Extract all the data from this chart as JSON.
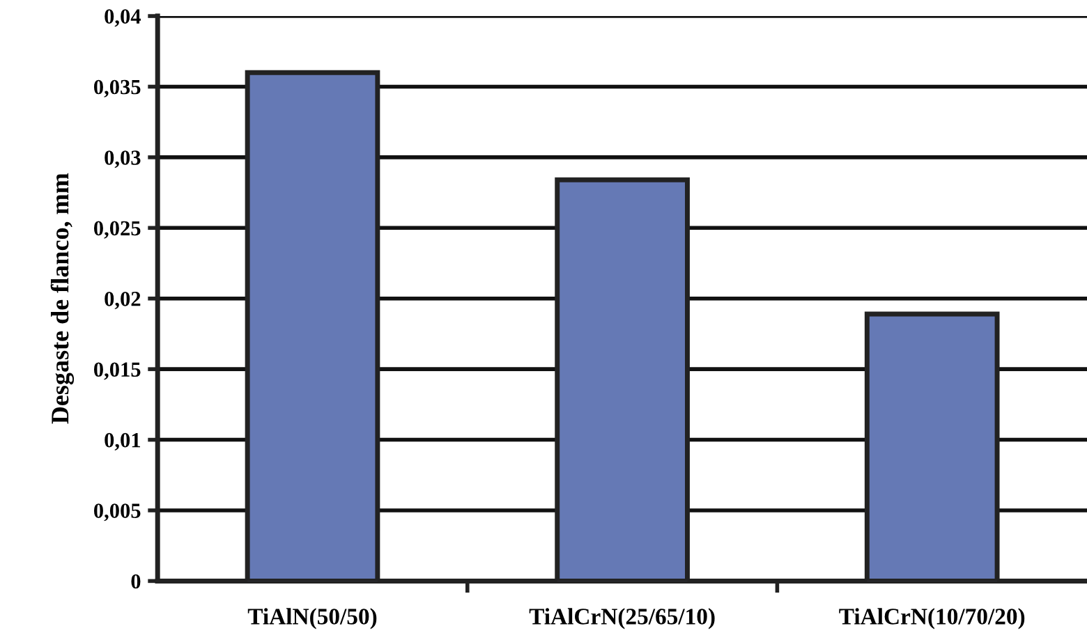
{
  "chart_data": {
    "type": "bar",
    "ylabel": "Desgaste de flanco, mm",
    "categories": [
      "TiAlN(50/50)",
      "TiAlCrN(25/65/10)",
      "TiAlCrN(10/70/20)"
    ],
    "values": [
      0.036,
      0.0284,
      0.0189
    ],
    "color": "#6579b5",
    "ylim": [
      0,
      0.04
    ],
    "yticks": [
      {
        "value": 0,
        "label": "0"
      },
      {
        "value": 0.005,
        "label": "0,005"
      },
      {
        "value": 0.01,
        "label": "0,01"
      },
      {
        "value": 0.015,
        "label": "0,015"
      },
      {
        "value": 0.02,
        "label": "0,02"
      },
      {
        "value": 0.025,
        "label": "0,025"
      },
      {
        "value": 0.03,
        "label": "0,03"
      },
      {
        "value": 0.035,
        "label": "0,035"
      },
      {
        "value": 0.04,
        "label": "0,04"
      }
    ],
    "grid": "y"
  }
}
